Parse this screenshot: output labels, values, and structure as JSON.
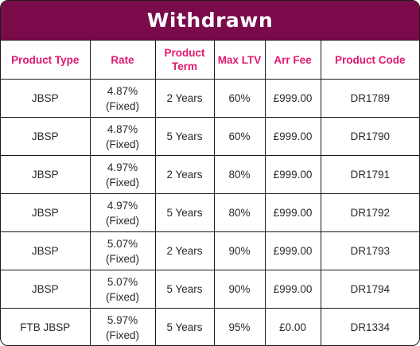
{
  "title": "Withdrawn",
  "colors": {
    "title_background": "#7a0a4a",
    "title_text": "#ffffff",
    "header_text": "#e0186f",
    "cell_text": "#2a2a2a",
    "border": "#1a1a1a"
  },
  "table": {
    "headers": {
      "product_type": "Product Type",
      "rate": "Rate",
      "product_term_line1": "Product",
      "product_term_line2": "Term",
      "max_ltv": "Max LTV",
      "arr_fee": "Arr Fee",
      "product_code": "Product Code"
    },
    "rows": [
      {
        "product_type": "JBSP",
        "rate": "4.87%",
        "rate_type": "(Fixed)",
        "term": "2 Years",
        "max_ltv": "60%",
        "arr_fee": "£999.00",
        "code": "DR1789"
      },
      {
        "product_type": "JBSP",
        "rate": "4.87%",
        "rate_type": "(Fixed)",
        "term": "5 Years",
        "max_ltv": "60%",
        "arr_fee": "£999.00",
        "code": "DR1790"
      },
      {
        "product_type": "JBSP",
        "rate": "4.97%",
        "rate_type": "(Fixed)",
        "term": "2 Years",
        "max_ltv": "80%",
        "arr_fee": "£999.00",
        "code": "DR1791"
      },
      {
        "product_type": "JBSP",
        "rate": "4.97%",
        "rate_type": "(Fixed)",
        "term": "5 Years",
        "max_ltv": "80%",
        "arr_fee": "£999.00",
        "code": "DR1792"
      },
      {
        "product_type": "JBSP",
        "rate": "5.07%",
        "rate_type": "(Fixed)",
        "term": "2 Years",
        "max_ltv": "90%",
        "arr_fee": "£999.00",
        "code": "DR1793"
      },
      {
        "product_type": "JBSP",
        "rate": "5.07%",
        "rate_type": "(Fixed)",
        "term": "5 Years",
        "max_ltv": "90%",
        "arr_fee": "£999.00",
        "code": "DR1794"
      },
      {
        "product_type": "FTB JBSP",
        "rate": "5.97%",
        "rate_type": "(Fixed)",
        "term": "5 Years",
        "max_ltv": "95%",
        "arr_fee": "£0.00",
        "code": "DR1334"
      }
    ]
  }
}
